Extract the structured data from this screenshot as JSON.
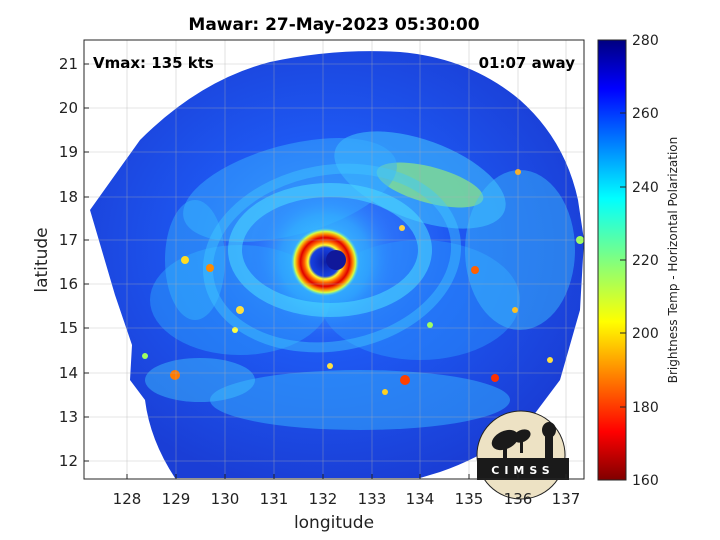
{
  "title": "Mawar: 27-May-2023 05:30:00",
  "vmax_label": "Vmax: 135 kts",
  "away_label": "01:07 away",
  "xlabel": "longitude",
  "ylabel": "latitude",
  "x_ticks": [
    "128",
    "129",
    "130",
    "131",
    "132",
    "133",
    "134",
    "135",
    "136",
    "137"
  ],
  "y_ticks": [
    "12",
    "13",
    "14",
    "15",
    "16",
    "17",
    "18",
    "19",
    "20",
    "21"
  ],
  "colorbar": {
    "label": "Brightness Temp - Horizontal Polarization",
    "ticks": [
      "160",
      "180",
      "200",
      "220",
      "240",
      "260",
      "280"
    ],
    "min": 160,
    "max": 280,
    "colormap": "jet"
  },
  "storm_center": {
    "lon": 132.3,
    "lat": 16.5
  },
  "logo": {
    "text": "CIMSS"
  }
}
